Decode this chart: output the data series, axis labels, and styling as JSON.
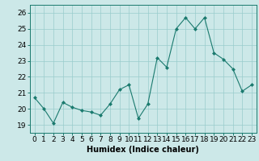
{
  "x": [
    0,
    1,
    2,
    3,
    4,
    5,
    6,
    7,
    8,
    9,
    10,
    11,
    12,
    13,
    14,
    15,
    16,
    17,
    18,
    19,
    20,
    21,
    22,
    23
  ],
  "y": [
    20.7,
    20.0,
    19.1,
    20.4,
    20.1,
    19.9,
    19.8,
    19.6,
    20.3,
    21.2,
    21.5,
    19.4,
    20.3,
    23.2,
    22.6,
    25.0,
    25.7,
    25.0,
    25.7,
    23.5,
    23.1,
    22.5,
    21.1,
    21.5
  ],
  "xlabel": "Humidex (Indice chaleur)",
  "ylim": [
    18.5,
    26.5
  ],
  "xlim": [
    -0.5,
    23.5
  ],
  "yticks": [
    19,
    20,
    21,
    22,
    23,
    24,
    25,
    26
  ],
  "xticks": [
    0,
    1,
    2,
    3,
    4,
    5,
    6,
    7,
    8,
    9,
    10,
    11,
    12,
    13,
    14,
    15,
    16,
    17,
    18,
    19,
    20,
    21,
    22,
    23
  ],
  "line_color": "#1a7a6e",
  "marker_color": "#1a7a6e",
  "bg_color": "#cce8e8",
  "grid_color": "#99cccc",
  "xlabel_fontsize": 7,
  "tick_fontsize": 6.5
}
